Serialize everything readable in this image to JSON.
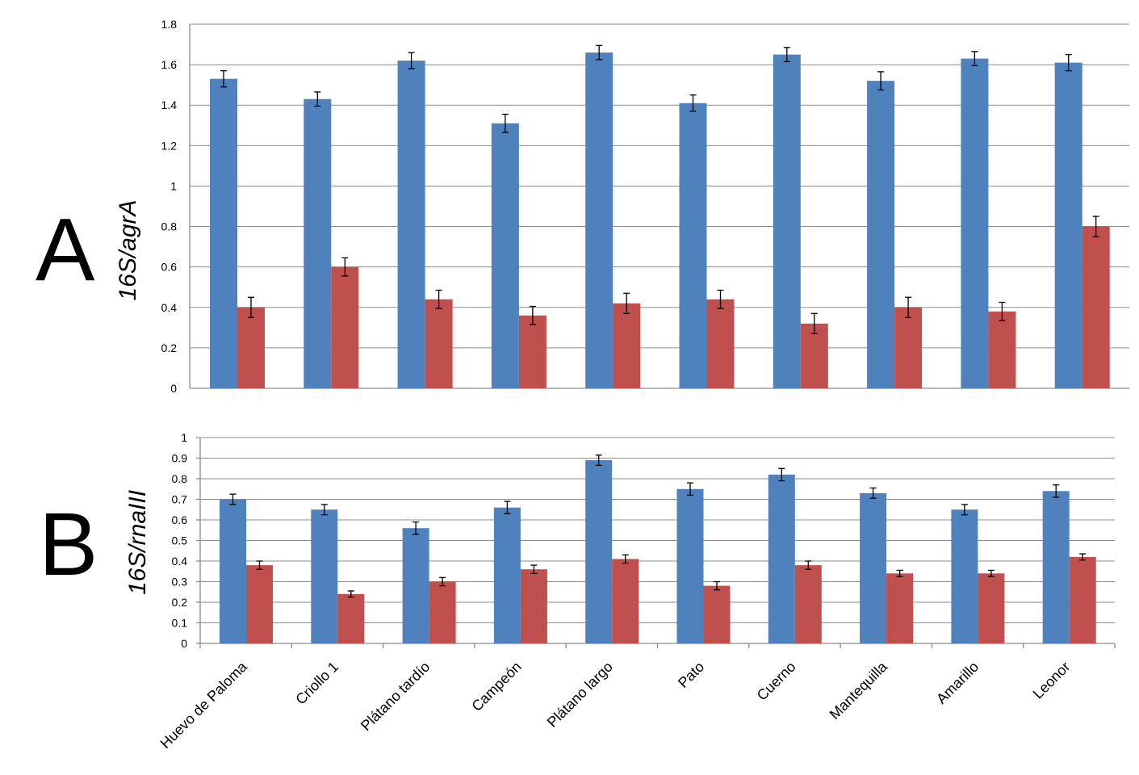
{
  "chart_data": [
    {
      "panel": "A",
      "type": "bar",
      "ylabel": "16S/agrA",
      "ylim": [
        0,
        1.8
      ],
      "yticks": [
        0,
        0.2,
        0.4,
        0.6,
        0.8,
        1,
        1.2,
        1.4,
        1.6,
        1.8
      ],
      "ytick_labels": [
        "0",
        "0.2",
        "0.4",
        "0.6",
        "0.8",
        "1",
        "1.2",
        "1.4",
        "1.6",
        "1.8"
      ],
      "categories": [
        "Huevo de Paloma",
        "Criollo 1",
        "Plátano tardío",
        "Campeón",
        "Plátano largo",
        "Pato",
        "Cuerno",
        "Mantequilla",
        "Amarillo",
        "Leonor"
      ],
      "series": [
        {
          "name": "blue",
          "color": "#4f81bd",
          "values": [
            1.53,
            1.43,
            1.62,
            1.31,
            1.66,
            1.41,
            1.65,
            1.52,
            1.63,
            1.61
          ],
          "errors": [
            0.04,
            0.035,
            0.04,
            0.045,
            0.035,
            0.04,
            0.035,
            0.045,
            0.035,
            0.04
          ]
        },
        {
          "name": "red",
          "color": "#c0504d",
          "values": [
            0.4,
            0.6,
            0.44,
            0.36,
            0.42,
            0.44,
            0.32,
            0.4,
            0.38,
            0.8
          ],
          "errors": [
            0.05,
            0.045,
            0.045,
            0.045,
            0.05,
            0.045,
            0.05,
            0.05,
            0.045,
            0.05
          ]
        }
      ]
    },
    {
      "panel": "B",
      "type": "bar",
      "ylabel": "16S/rnaIII",
      "ylim": [
        0,
        1
      ],
      "yticks": [
        0,
        0.1,
        0.2,
        0.3,
        0.4,
        0.5,
        0.6,
        0.7,
        0.8,
        0.9,
        1
      ],
      "ytick_labels": [
        "0",
        "0.1",
        "0.2",
        "0.3",
        "0.4",
        "0.5",
        "0.6",
        "0.7",
        "0.8",
        "0.9",
        "1"
      ],
      "categories": [
        "Huevo de Paloma",
        "Criollo 1",
        "Plátano tardío",
        "Campeón",
        "Plátano largo",
        "Pato",
        "Cuerno",
        "Mantequilla",
        "Amarillo",
        "Leonor"
      ],
      "series": [
        {
          "name": "blue",
          "color": "#4f81bd",
          "values": [
            0.7,
            0.65,
            0.56,
            0.66,
            0.89,
            0.75,
            0.82,
            0.73,
            0.65,
            0.74
          ],
          "errors": [
            0.025,
            0.025,
            0.03,
            0.03,
            0.025,
            0.03,
            0.03,
            0.025,
            0.025,
            0.03
          ]
        },
        {
          "name": "red",
          "color": "#c0504d",
          "values": [
            0.38,
            0.24,
            0.3,
            0.36,
            0.41,
            0.28,
            0.38,
            0.34,
            0.34,
            0.42
          ],
          "errors": [
            0.02,
            0.015,
            0.02,
            0.02,
            0.02,
            0.02,
            0.02,
            0.015,
            0.015,
            0.015
          ]
        }
      ]
    }
  ]
}
